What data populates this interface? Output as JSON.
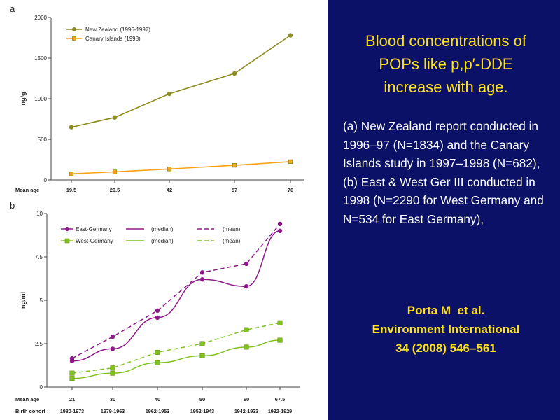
{
  "slide": {
    "title_lines": [
      "Blood concentrations of",
      "POPs like p,p′-DDE",
      "increase with age."
    ],
    "body": " (a) New Zealand report conducted in 1996–97 (N=1834) and the Canary Islands study in 1997–1998 (N=682),\n(b) East & West Ger III conducted in 1998 (N=2290 for West Germany and N=534 for East Germany),",
    "citation_lines": [
      "Porta M  et al.",
      "Environment International",
      "34 (2008) 546–561"
    ]
  },
  "chart_data": [
    {
      "panel": "a",
      "type": "line",
      "title": "",
      "ylabel": "ng/g",
      "xlabel": "",
      "row_label": "Mean age",
      "categories": [
        "19.5",
        "29.5",
        "42",
        "57",
        "70"
      ],
      "ylim": [
        0,
        2000
      ],
      "yticks": [
        0,
        500,
        1000,
        1500,
        2000
      ],
      "legend_position": "top-left",
      "series": [
        {
          "name": "New Zealand (1996-1997)",
          "values": [
            650,
            770,
            1060,
            1310,
            1780
          ],
          "color": "#8c8c1e",
          "marker": "circle"
        },
        {
          "name": "Canary Islands (1998)",
          "values": [
            75,
            100,
            135,
            180,
            225
          ],
          "color": "#f7a21c",
          "marker": "square"
        }
      ]
    },
    {
      "panel": "b",
      "type": "line",
      "title": "",
      "ylabel": "ng/ml",
      "xlabel": "",
      "row_labels": [
        "Mean age",
        "Birth cohort"
      ],
      "categories": [
        "21",
        "30",
        "40",
        "50",
        "60",
        "67.5"
      ],
      "cohorts": [
        "1980-1973",
        "1979-1963",
        "1962-1953",
        "1952-1943",
        "1942-1933",
        "1932-1929"
      ],
      "ylim": [
        0,
        10
      ],
      "yticks": [
        "0",
        "2.5",
        "5",
        "7.5",
        "10"
      ],
      "legend_position": "top-left",
      "legend_median": "(median)",
      "legend_mean": "(mean)",
      "series": [
        {
          "name": "East-Germany",
          "color": "#8e1a8a",
          "marker": "circle",
          "median": [
            1.5,
            2.2,
            4.0,
            6.2,
            5.8,
            9.0
          ],
          "mean": [
            1.65,
            2.9,
            4.4,
            6.6,
            7.1,
            9.4
          ]
        },
        {
          "name": "West-Germany",
          "color": "#7fc21f",
          "marker": "square",
          "median": [
            0.5,
            0.8,
            1.4,
            1.8,
            2.3,
            2.7
          ],
          "mean": [
            0.8,
            1.1,
            2.0,
            2.5,
            3.3,
            3.7
          ]
        }
      ]
    }
  ]
}
